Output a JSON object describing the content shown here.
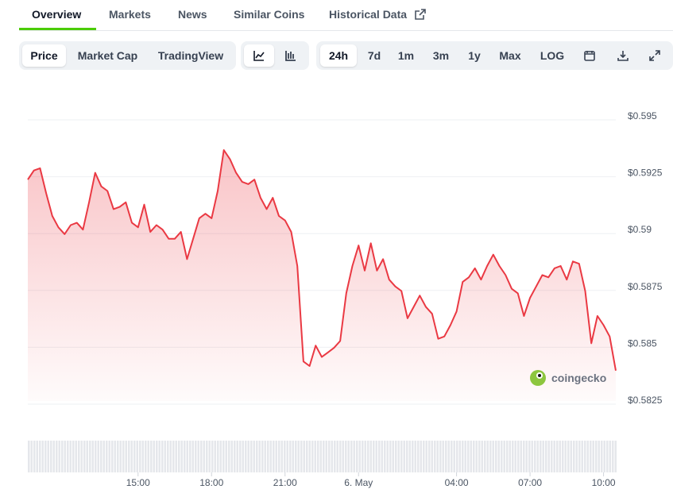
{
  "tabs": [
    "Overview",
    "Markets",
    "News",
    "Similar Coins",
    "Historical Data"
  ],
  "toolbar": {
    "chart_types": [
      "Price",
      "Market Cap",
      "TradingView"
    ],
    "ranges": [
      "24h",
      "7d",
      "1m",
      "3m",
      "1y",
      "Max",
      "LOG"
    ]
  },
  "watermark": "coingecko",
  "chart_data": {
    "type": "line",
    "color": "#ea3943",
    "grid": true,
    "x": [
      10.5,
      10.75,
      11,
      11.25,
      11.5,
      11.75,
      12,
      12.25,
      12.5,
      12.75,
      13,
      13.25,
      13.5,
      13.75,
      14,
      14.25,
      14.5,
      14.75,
      15,
      15.25,
      15.5,
      15.75,
      16,
      16.25,
      16.5,
      16.75,
      17,
      17.25,
      17.5,
      17.75,
      18,
      18.25,
      18.5,
      18.75,
      19,
      19.25,
      19.5,
      19.75,
      20,
      20.25,
      20.5,
      20.75,
      21,
      21.25,
      21.5,
      21.75,
      22,
      22.25,
      22.5,
      22.75,
      23,
      23.25,
      23.5,
      23.75,
      24,
      24.25,
      24.5,
      24.75,
      25,
      25.25,
      25.5,
      25.75,
      26,
      26.25,
      26.5,
      26.75,
      27,
      27.25,
      27.5,
      27.75,
      28,
      28.25,
      28.5,
      28.75,
      29,
      29.25,
      29.5,
      29.75,
      30,
      30.25,
      30.5,
      30.75,
      31,
      31.25,
      31.5,
      31.75,
      32,
      32.25,
      32.5,
      32.75,
      33,
      33.25,
      33.5,
      33.75,
      34,
      34.25,
      34.5
    ],
    "values": [
      0.5922,
      0.5926,
      0.5927,
      0.5916,
      0.5906,
      0.5901,
      0.5898,
      0.5902,
      0.5903,
      0.59,
      0.5912,
      0.5925,
      0.5919,
      0.5917,
      0.5909,
      0.591,
      0.5912,
      0.5903,
      0.5901,
      0.5911,
      0.5899,
      0.5902,
      0.59,
      0.5896,
      0.5896,
      0.5899,
      0.5887,
      0.5896,
      0.5905,
      0.5907,
      0.5905,
      0.5917,
      0.5935,
      0.5931,
      0.5925,
      0.5921,
      0.592,
      0.5922,
      0.5914,
      0.5909,
      0.5914,
      0.5906,
      0.5904,
      0.5899,
      0.5884,
      0.5842,
      0.584,
      0.5849,
      0.5844,
      0.5846,
      0.5848,
      0.5851,
      0.5872,
      0.5884,
      0.5893,
      0.5882,
      0.5894,
      0.5882,
      0.5887,
      0.5878,
      0.5875,
      0.5873,
      0.5861,
      0.5866,
      0.5871,
      0.5866,
      0.5863,
      0.5852,
      0.5853,
      0.5858,
      0.5864,
      0.5877,
      0.5879,
      0.5883,
      0.5878,
      0.5884,
      0.5889,
      0.5884,
      0.588,
      0.5874,
      0.5872,
      0.5862,
      0.587,
      0.5875,
      0.588,
      0.5879,
      0.5883,
      0.5884,
      0.5878,
      0.5886,
      0.5885,
      0.5873,
      0.585,
      0.5862,
      0.5858,
      0.5853,
      0.5838
    ],
    "xlim": [
      10.5,
      34.5
    ],
    "xticks": [
      {
        "value": 15,
        "label": "15:00"
      },
      {
        "value": 18,
        "label": "18:00"
      },
      {
        "value": 21,
        "label": "21:00"
      },
      {
        "value": 24,
        "label": "6. May"
      },
      {
        "value": 28,
        "label": "04:00"
      },
      {
        "value": 31,
        "label": "07:00"
      },
      {
        "value": 34,
        "label": "10:00"
      }
    ],
    "ylim": [
      0.5825,
      0.595
    ],
    "yticks": [
      {
        "value": 0.595,
        "label": "$0.595"
      },
      {
        "value": 0.5925,
        "label": "$0.5925"
      },
      {
        "value": 0.59,
        "label": "$0.59"
      },
      {
        "value": 0.5875,
        "label": "$0.5875"
      },
      {
        "value": 0.585,
        "label": "$0.585"
      },
      {
        "value": 0.5825,
        "label": "$0.5825"
      }
    ]
  }
}
